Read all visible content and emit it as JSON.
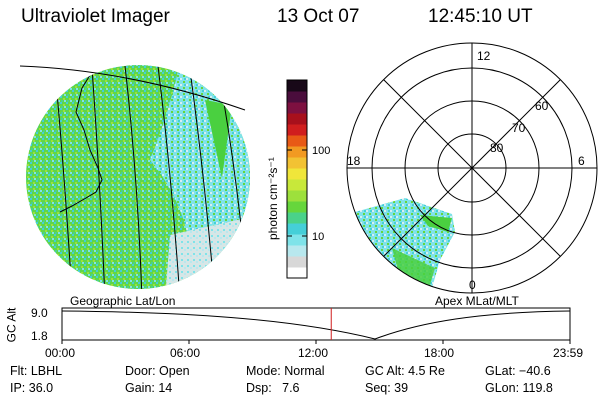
{
  "header": {
    "instrument": "Ultraviolet Imager",
    "date": "13 Oct 07",
    "time": "12:45:10 UT"
  },
  "colorbar": {
    "unit_label": "photon cm⁻²s⁻¹",
    "ticks": [
      "100",
      "10"
    ],
    "colors": [
      "#ffffff",
      "#d8d8d8",
      "#b8e8ee",
      "#7fe3e9",
      "#45cfd8",
      "#4ad28a",
      "#66d63c",
      "#9de03c",
      "#c8e83a",
      "#f0e63a",
      "#f2c233",
      "#f29a22",
      "#e85a16",
      "#d01e1e",
      "#a8101c",
      "#7d1040",
      "#4a0d3c",
      "#180818"
    ]
  },
  "left_panel": {
    "label": "Geographic Lat/Lon"
  },
  "right_panel": {
    "label": "Apex MLat/MLT",
    "mlt_labels": {
      "top": "12",
      "left": "18",
      "right": "6",
      "bottom": "0"
    },
    "lat_labels": [
      "60",
      "70",
      "80"
    ]
  },
  "altitude_plot": {
    "ylabel": "GC Alt",
    "yticks": [
      "9.0",
      "1.8"
    ],
    "xticks": [
      "00:00",
      "06:00",
      "12:00",
      "18:00",
      "23:59"
    ],
    "current_time_fraction": 0.53
  },
  "footer": {
    "row1": {
      "filter": "Flt: LBHL",
      "door": "Door: Open",
      "mode": "Mode: Normal",
      "gc_alt": "GC Alt: 4.5 Re",
      "glat": "GLat: −40.6"
    },
    "row2": {
      "ip": "IP: 36.0",
      "gain": "Gain: 14",
      "dsp": "Dsp:   7.6",
      "seq": "Seq: 39",
      "glon": "GLon: 119.8"
    }
  }
}
